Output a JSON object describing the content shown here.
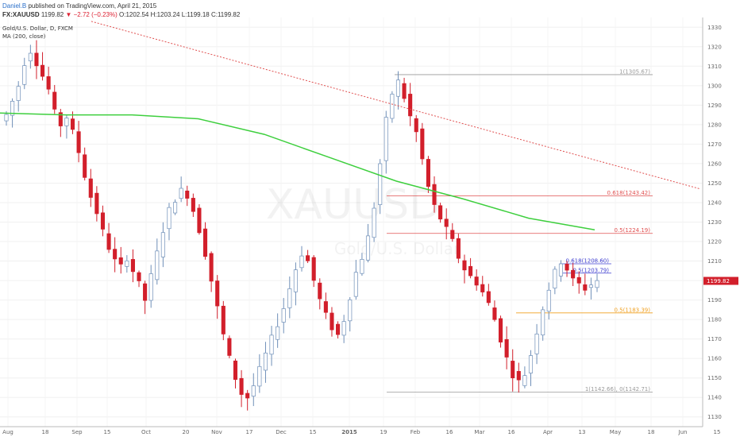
{
  "header": {
    "author": "Daniel.B",
    "published": "published on TradingView.com, April 21, 2015",
    "symbol": "FX:XAUUSD",
    "price": "1199.82",
    "change": "▼ −2.72 (−0.23%)",
    "ohlc": "O:1202.54 H:1203.24 L:1199.18 C:1199.82"
  },
  "legend": {
    "instrument": "Gold/U.S. Dollar, D, FXCM",
    "indicator": "MA (200, close)"
  },
  "watermark": {
    "symbol": "XAUUSD",
    "subtitle": "Gold/U.S. Dollar"
  },
  "colors": {
    "up": "#ffffff",
    "up_border": "#6f8fb8",
    "down": "#d21f2b",
    "ma": "#3ecf3e",
    "trend": "#e05050",
    "fib_red": "#e05050",
    "fib_blue": "#4040d0",
    "fib_orange": "#f0a020",
    "fib_gray": "#9a9a9a",
    "last_price_bg": "#d21f2b"
  },
  "chart_data": {
    "type": "candlestick",
    "ylim": [
      1125,
      1335
    ],
    "y_ticks": [
      1130,
      1140,
      1150,
      1160,
      1170,
      1180,
      1190,
      1200,
      1210,
      1220,
      1230,
      1240,
      1250,
      1260,
      1270,
      1280,
      1290,
      1300,
      1310,
      1320,
      1330
    ],
    "x_labels": [
      "Aug",
      "18",
      "Sep",
      "15",
      "Oct",
      "20",
      "Nov",
      "17",
      "Dec",
      "15",
      "2015",
      "19",
      "Feb",
      "16",
      "Mar",
      "16",
      "Apr",
      "13",
      "May",
      "18",
      "Jun",
      "15"
    ],
    "last_price": 1199.82,
    "ma200": [
      1286,
      1285,
      1285,
      1283,
      1275,
      1263,
      1251,
      1242,
      1232,
      1226
    ],
    "trendline": [
      1333,
      1247
    ],
    "fib_levels": [
      {
        "label": "1(1305.67)",
        "value": 1305.67,
        "color": "gray"
      },
      {
        "label": "0.618(1243.42)",
        "value": 1243.42,
        "color": "red"
      },
      {
        "label": "0.5(1224.19)",
        "value": 1224.19,
        "color": "red"
      },
      {
        "label": "0.618(1208.60)",
        "value": 1208.6,
        "color": "blue"
      },
      {
        "label": "0.5(1203.79)",
        "value": 1203.79,
        "color": "blue"
      },
      {
        "label": "0.5(1183.39)",
        "value": 1183.39,
        "color": "orange"
      },
      {
        "label": "1(1142.66), 0(1142.71)",
        "value": 1142.7,
        "color": "gray"
      }
    ],
    "close_path": [
      1285,
      1292,
      1300,
      1312,
      1318,
      1312,
      1305,
      1298,
      1286,
      1280,
      1284,
      1276,
      1266,
      1254,
      1243,
      1235,
      1225,
      1217,
      1210,
      1207,
      1212,
      1205,
      1198,
      1190,
      1202,
      1214,
      1226,
      1236,
      1242,
      1246,
      1244,
      1236,
      1226,
      1214,
      1200,
      1186,
      1172,
      1160,
      1150,
      1142,
      1140,
      1146,
      1154,
      1162,
      1170,
      1178,
      1186,
      1196,
      1206,
      1214,
      1210,
      1200,
      1190,
      1182,
      1176,
      1172,
      1180,
      1192,
      1204,
      1212,
      1222,
      1238,
      1260,
      1282,
      1296,
      1302,
      1294,
      1284,
      1276,
      1262,
      1248,
      1238,
      1232,
      1226,
      1220,
      1212,
      1206,
      1202,
      1199,
      1194,
      1188,
      1180,
      1170,
      1160,
      1152,
      1148,
      1152,
      1162,
      1174,
      1186,
      1196,
      1204,
      1210,
      1206,
      1200,
      1198,
      1196,
      1198,
      1200
    ]
  }
}
